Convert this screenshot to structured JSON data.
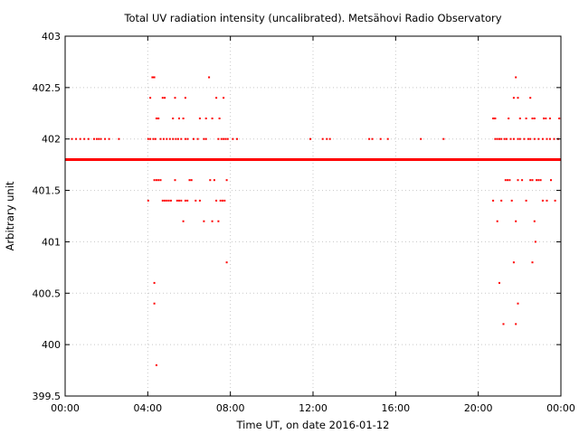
{
  "chart_data": {
    "type": "scatter",
    "title": "Total UV radiation intensity (uncalibrated). Metsähovi Radio Observatory",
    "xlabel": "Time UT, on date 2016-01-12",
    "ylabel": "Arbitrary unit",
    "x_tick_labels": [
      "00:00",
      "04:00",
      "08:00",
      "12:00",
      "16:00",
      "20:00",
      "00:00"
    ],
    "x_tick_hours": [
      0,
      4,
      8,
      12,
      16,
      20,
      24
    ],
    "y_ticks": [
      399.5,
      400,
      400.5,
      401,
      401.5,
      402,
      402.5,
      403
    ],
    "xlim_hours": [
      0,
      24
    ],
    "ylim": [
      399.5,
      403
    ],
    "grid": true,
    "marker_color": "#ff0000",
    "baseline_value": 401.8,
    "series": [
      {
        "x_hours": [
          0.33,
          0.53,
          0.73,
          0.93,
          1.13,
          1.4,
          1.53,
          1.63,
          1.73,
          1.93,
          2.13,
          2.6,
          4.02,
          4.12,
          4.27,
          4.37,
          4.62,
          4.77,
          4.92,
          5.07,
          5.22,
          5.36,
          5.47,
          5.62,
          5.82,
          5.93,
          6.22,
          6.42,
          6.72,
          6.82,
          7.42,
          7.57,
          7.67,
          7.77,
          7.87,
          8.12,
          8.32,
          11.87,
          12.47,
          12.67,
          12.82,
          14.72,
          14.87,
          15.27,
          15.62,
          17.22,
          18.32,
          20.82,
          20.92,
          21.02,
          21.12,
          21.27,
          21.37,
          21.57,
          21.72,
          21.92,
          22.02,
          22.22,
          22.42,
          22.52,
          22.72,
          22.92,
          23.12,
          23.32,
          23.47,
          23.67,
          23.87
        ],
        "y": [
          402,
          402,
          402,
          402,
          402,
          402,
          402,
          402,
          402,
          402,
          402,
          402,
          402,
          402,
          402,
          402,
          402,
          402,
          402,
          402,
          402,
          402,
          402,
          402,
          402,
          402,
          402,
          402,
          402,
          402,
          402,
          402,
          402,
          402,
          402,
          402,
          402,
          402,
          402,
          402,
          402,
          402,
          402,
          402,
          402,
          402,
          402,
          402,
          402,
          402,
          402,
          402,
          402,
          402,
          402,
          402,
          402,
          402,
          402,
          402,
          402,
          402,
          402,
          402,
          402,
          402,
          402
        ]
      },
      {
        "x_hours": [
          4.12,
          4.22,
          4.27,
          4.32,
          4.42,
          4.47,
          4.52,
          4.72,
          4.82,
          5.22,
          5.32,
          5.52,
          5.72,
          5.82,
          6.52,
          6.82,
          6.97,
          7.12,
          7.32,
          7.47,
          7.67,
          20.72,
          20.77,
          20.82,
          21.47,
          21.72,
          21.82,
          21.92,
          22.02,
          22.32,
          22.52,
          22.62,
          22.72,
          23.17,
          23.27,
          23.47,
          23.92
        ],
        "y": [
          402.4,
          402.6,
          402.6,
          402.6,
          402.2,
          402.2,
          402.2,
          402.4,
          402.4,
          402.2,
          402.4,
          402.2,
          402.2,
          402.4,
          402.2,
          402.2,
          402.6,
          402.2,
          402.4,
          402.2,
          402.4,
          402.2,
          402.2,
          402.2,
          402.2,
          402.4,
          402.6,
          402.4,
          402.2,
          402.2,
          402.4,
          402.2,
          402.2,
          402.2,
          402.2,
          402.2,
          402.2
        ]
      },
      {
        "x_hours": [
          4.02,
          4.32,
          4.42,
          4.52,
          4.62,
          4.72,
          4.82,
          4.92,
          5.02,
          5.12,
          5.32,
          5.42,
          5.52,
          5.62,
          5.72,
          5.82,
          5.92,
          6.02,
          6.12,
          6.32,
          6.52,
          6.72,
          7.02,
          7.12,
          7.22,
          7.32,
          7.42,
          7.52,
          7.62,
          7.72,
          7.82,
          20.72,
          20.92,
          21.12,
          21.32,
          21.42,
          21.52,
          21.62,
          21.82,
          21.92,
          22.12,
          22.32,
          22.52,
          22.62,
          22.72,
          22.82,
          22.92,
          23.02,
          23.12,
          23.32,
          23.52,
          23.72
        ],
        "y": [
          401.4,
          401.6,
          401.6,
          401.6,
          401.6,
          401.4,
          401.4,
          401.4,
          401.4,
          401.4,
          401.6,
          401.4,
          401.4,
          401.4,
          401.2,
          401.4,
          401.4,
          401.6,
          401.6,
          401.4,
          401.4,
          401.2,
          401.6,
          401.2,
          401.6,
          401.4,
          401.2,
          401.4,
          401.4,
          401.4,
          401.6,
          401.4,
          401.2,
          401.4,
          401.6,
          401.6,
          401.6,
          401.4,
          401.2,
          401.6,
          401.6,
          401.4,
          401.6,
          401.6,
          401.2,
          401.6,
          401.6,
          401.6,
          401.4,
          401.4,
          401.6,
          401.4
        ]
      },
      {
        "x_hours": [
          4.32,
          4.32,
          4.42,
          7.82,
          21.02,
          21.22,
          21.72,
          21.82,
          21.92,
          22.62,
          22.77
        ],
        "y": [
          400.6,
          400.4,
          399.8,
          400.8,
          400.6,
          400.2,
          400.8,
          400.2,
          400.4,
          400.8,
          401.0
        ]
      }
    ]
  }
}
